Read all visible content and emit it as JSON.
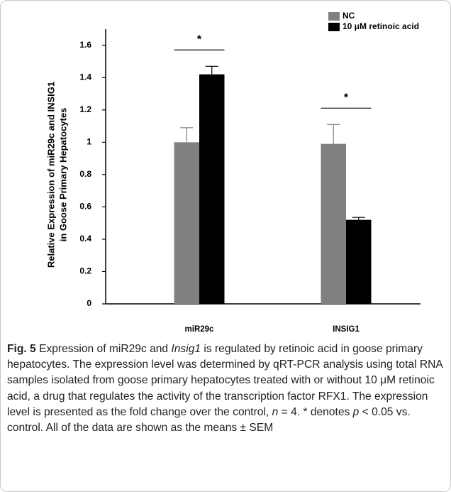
{
  "chart_data": {
    "type": "bar",
    "y_label": [
      "Relative Expression of miR29c and INSIG1",
      "in Goose Primary Hepatocytes"
    ],
    "categories": [
      "miR29c",
      "INSIG1"
    ],
    "series": [
      {
        "name": "NC",
        "color": "#808080",
        "values": [
          1.0,
          0.99
        ],
        "errors": [
          0.09,
          0.12
        ]
      },
      {
        "name": "10 μM retinoic acid",
        "color": "#000000",
        "values": [
          1.42,
          0.52
        ],
        "errors": [
          0.05,
          0.015
        ]
      }
    ],
    "annotations": [
      {
        "text": "*",
        "category": 0
      },
      {
        "text": "*",
        "category": 1
      }
    ],
    "ylim": [
      0,
      1.7
    ],
    "yticks": [
      0,
      0.2,
      0.4,
      0.6,
      0.8,
      1,
      1.2,
      1.4,
      1.6
    ],
    "grid": false,
    "legend": "upper right"
  },
  "caption": {
    "label": "Fig. 5",
    "parts": [
      " Expression of miR29c and ",
      "Insig1",
      " is regulated by retinoic acid in goose primary hepatocytes. The expression level was determined by qRT-PCR analysis using total RNA samples isolated from goose primary hepatocytes treated with or without 10 μM retinoic acid, a drug that regulates the activity of the transcription factor RFX1. The expression level is presented as the fold change over the control, ",
      "n",
      " = 4. * denotes ",
      "p",
      " < 0.05 vs. control. All of the data are shown as the means ± SEM"
    ]
  }
}
